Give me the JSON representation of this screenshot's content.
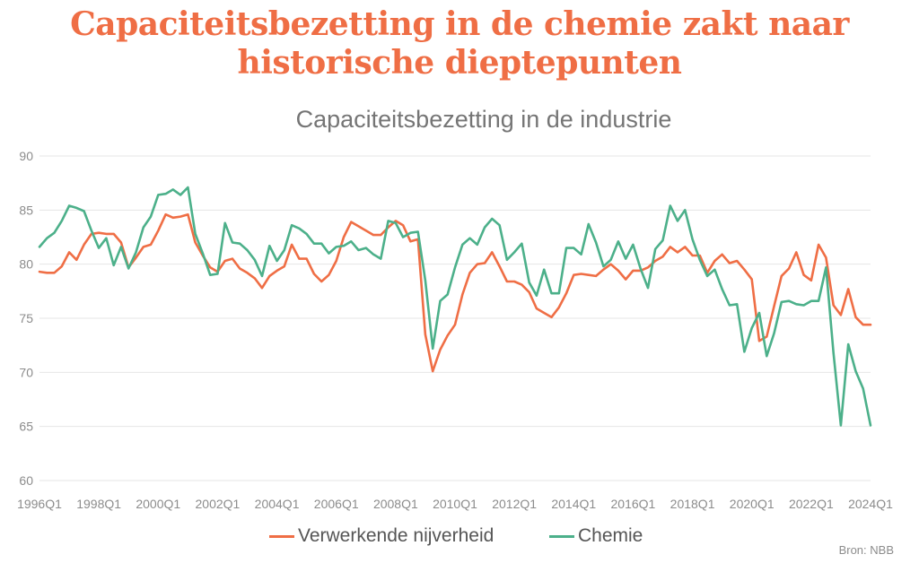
{
  "headline": "Capaciteitsbezetting in de chemie zakt naar historische dieptepunten",
  "source": "Bron: NBB",
  "colors": {
    "verwerkende": "#ef6e45",
    "chemie": "#4cb08a",
    "grid": "#e6e6e6",
    "headline": "#ef6e45"
  },
  "chart_data": {
    "type": "line",
    "title": "Capaciteitsbezetting in de industrie",
    "xlabel": "",
    "ylabel": "",
    "ylim": [
      60,
      90
    ],
    "y_ticks": [
      60,
      65,
      70,
      75,
      80,
      85,
      90
    ],
    "x_tick_labels": [
      "1996Q1",
      "1998Q1",
      "2000Q1",
      "2002Q1",
      "2004Q1",
      "2006Q1",
      "2008Q1",
      "2010Q1",
      "2012Q1",
      "2014Q1",
      "2016Q1",
      "2018Q1",
      "2020Q1",
      "2022Q1",
      "2024Q1"
    ],
    "x_start": "1996Q1",
    "x_end": "2024Q1",
    "grid": "horizontal",
    "legend_position": "bottom",
    "series": [
      {
        "name": "Verwerkende nijverheid",
        "color": "#ef6e45",
        "values": [
          79.3,
          79.2,
          79.2,
          79.8,
          81.1,
          80.4,
          81.8,
          82.8,
          82.9,
          82.8,
          82.8,
          82.0,
          79.7,
          80.6,
          81.6,
          81.8,
          83.1,
          84.6,
          84.3,
          84.4,
          84.6,
          82.0,
          80.8,
          79.7,
          79.3,
          80.3,
          80.5,
          79.6,
          79.2,
          78.7,
          77.8,
          78.9,
          79.4,
          79.8,
          81.8,
          80.5,
          80.5,
          79.1,
          78.4,
          79.0,
          80.3,
          82.5,
          83.9,
          83.5,
          83.1,
          82.7,
          82.7,
          83.4,
          84.0,
          83.6,
          82.1,
          82.3,
          73.5,
          70.1,
          72.1,
          73.4,
          74.4,
          77.2,
          79.2,
          80.0,
          80.1,
          81.1,
          79.8,
          78.4,
          78.4,
          78.1,
          77.4,
          75.9,
          75.5,
          75.1,
          76.0,
          77.3,
          79.0,
          79.1,
          79.0,
          78.9,
          79.5,
          80.0,
          79.4,
          78.6,
          79.4,
          79.4,
          79.7,
          80.3,
          80.7,
          81.6,
          81.1,
          81.6,
          80.8,
          80.8,
          79.2,
          80.3,
          80.9,
          80.1,
          80.3,
          79.5,
          78.6,
          72.9,
          73.3,
          76.1,
          78.9,
          79.6,
          81.1,
          79.0,
          78.5,
          81.8,
          80.6,
          76.2,
          75.3,
          77.7,
          75.1,
          74.4,
          74.4
        ]
      },
      {
        "name": "Chemie",
        "color": "#4cb08a",
        "values": [
          81.6,
          82.4,
          82.9,
          84.0,
          85.4,
          85.2,
          84.9,
          83.1,
          81.5,
          82.4,
          79.9,
          81.6,
          79.6,
          81.1,
          83.4,
          84.4,
          86.4,
          86.5,
          86.9,
          86.4,
          87.1,
          82.8,
          81.0,
          79.0,
          79.1,
          83.8,
          82.0,
          81.9,
          81.3,
          80.4,
          78.9,
          81.7,
          80.3,
          81.3,
          83.6,
          83.3,
          82.8,
          81.9,
          81.9,
          81.0,
          81.6,
          81.7,
          82.1,
          81.3,
          81.5,
          80.9,
          80.5,
          84.0,
          83.8,
          82.5,
          82.9,
          83.0,
          78.5,
          72.2,
          76.6,
          77.2,
          79.7,
          81.8,
          82.4,
          81.8,
          83.4,
          84.2,
          83.6,
          80.4,
          81.1,
          81.9,
          78.3,
          77.1,
          79.5,
          77.3,
          77.3,
          81.5,
          81.5,
          80.9,
          83.7,
          82.0,
          79.8,
          80.4,
          82.1,
          80.5,
          81.8,
          79.6,
          77.8,
          81.4,
          82.2,
          85.4,
          84.0,
          85.0,
          82.3,
          80.4,
          78.9,
          79.5,
          77.7,
          76.2,
          76.3,
          71.9,
          74.1,
          75.5,
          71.5,
          73.6,
          76.5,
          76.6,
          76.3,
          76.2,
          76.6,
          76.6,
          79.7,
          71.8,
          65.1,
          72.6,
          70.1,
          68.5,
          65.1
        ]
      }
    ]
  }
}
